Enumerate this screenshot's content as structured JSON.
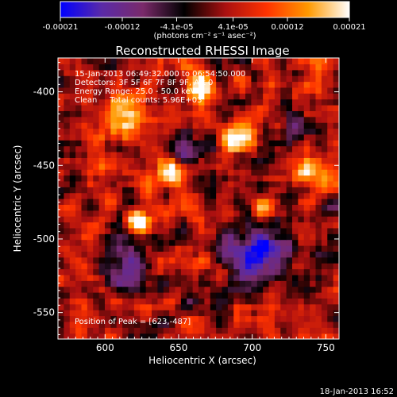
{
  "chart_data": {
    "type": "heatmap",
    "title": "Reconstructed RHESSI Image",
    "xlabel": "Heliocentric X (arcsec)",
    "ylabel": "Heliocentric Y (arcsec)",
    "xlim": [
      568,
      759
    ],
    "ylim": [
      -568,
      -377
    ],
    "xticks": [
      600,
      650,
      700,
      750
    ],
    "yticks": [
      -400,
      -450,
      -500,
      -550
    ],
    "grid": false,
    "colorbar": {
      "orientation": "horizontal",
      "position": "top",
      "range": [
        -0.00021,
        0.00021
      ],
      "ticks": [
        "-0.00021",
        "-0.00012",
        "-4.1e-05",
        "4.1e-05",
        "0.00012",
        "0.00021"
      ],
      "tick_values": [
        -0.00021,
        -0.00012,
        -4.1e-05,
        4.1e-05,
        0.00012,
        0.00021
      ],
      "unit_label": "(photons cm⁻² s⁻¹ asec⁻²)",
      "colors": [
        "#0000ff",
        "#5a2aa8",
        "#7a2a6a",
        "#000000",
        "#aa1010",
        "#ff3300",
        "#ff9900",
        "#ffffff"
      ]
    },
    "annotations": {
      "time_range": "15-Jan-2013 06:49:32.000 to 06:54:50.000",
      "detectors": "Detectors: 3F 5F 6F 7F 8F 9F, Att 0",
      "energy": "Energy Range: 25.0 - 50.0 keV",
      "clean": "Clean     Total counts: 5.96E+03",
      "peak": "Position of Peak = [623,-487]"
    },
    "peak_position": [
      623,
      -487
    ],
    "notable_features": [
      {
        "kind": "bright",
        "center": [
          623,
          -487
        ],
        "radius": 8,
        "level": 1.0
      },
      {
        "kind": "bright",
        "center": [
          690,
          -430
        ],
        "radius": 10,
        "level": 0.9
      },
      {
        "kind": "bright",
        "center": [
          665,
          -398
        ],
        "radius": 10,
        "level": 0.85
      },
      {
        "kind": "bright",
        "center": [
          612,
          -415
        ],
        "radius": 14,
        "level": 0.7
      },
      {
        "kind": "bright",
        "center": [
          645,
          -455
        ],
        "radius": 10,
        "level": 0.75
      },
      {
        "kind": "bright",
        "center": [
          740,
          -455
        ],
        "radius": 10,
        "level": 0.7
      },
      {
        "kind": "bright",
        "center": [
          705,
          -480
        ],
        "radius": 8,
        "level": 0.75
      },
      {
        "kind": "negative",
        "center": [
          705,
          -510
        ],
        "radius": 22,
        "level": -0.9
      },
      {
        "kind": "negative",
        "center": [
          655,
          -440
        ],
        "radius": 10,
        "level": -0.7
      },
      {
        "kind": "negative",
        "center": [
          615,
          -520
        ],
        "radius": 16,
        "level": -0.6
      },
      {
        "kind": "negative",
        "center": [
          728,
          -420
        ],
        "radius": 10,
        "level": -0.5
      }
    ]
  },
  "footer": {
    "timestamp": "18-Jan-2013 16:52"
  }
}
